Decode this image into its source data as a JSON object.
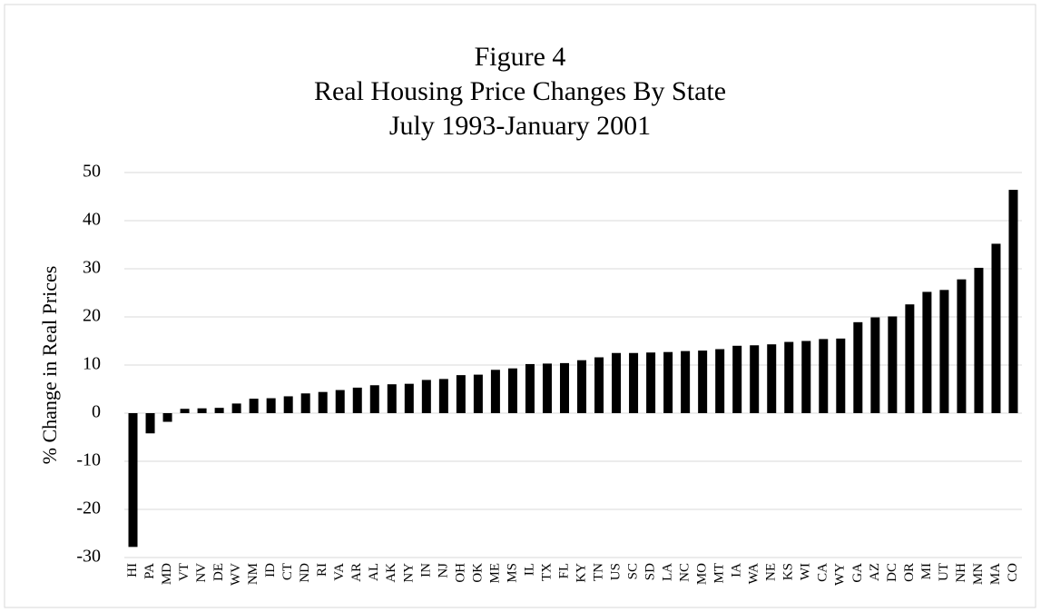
{
  "chart_data": {
    "type": "bar",
    "title": [
      "Figure 4",
      "Real Housing Price Changes By State",
      "July 1993-January 2001"
    ],
    "y_label": "% Change in Real Prices",
    "categories": [
      "HI",
      "PA",
      "MD",
      "VT",
      "NV",
      "DE",
      "WV",
      "NM",
      "ID",
      "CT",
      "ND",
      "RI",
      "VA",
      "AR",
      "AL",
      "AK",
      "NY",
      "IN",
      "NJ",
      "OH",
      "OK",
      "ME",
      "MS",
      "IL",
      "TX",
      "FL",
      "KY",
      "TN",
      "US",
      "SC",
      "SD",
      "LA",
      "NC",
      "MO",
      "MT",
      "IA",
      "WA",
      "NE",
      "KS",
      "WI",
      "CA",
      "WY",
      "GA",
      "AZ",
      "DC",
      "OR",
      "MI",
      "UT",
      "NH",
      "MN",
      "MA",
      "CO"
    ],
    "values": [
      -27.8,
      -4.2,
      -1.8,
      0.9,
      1.0,
      1.1,
      2.0,
      3.0,
      3.1,
      3.5,
      4.1,
      4.4,
      4.8,
      5.3,
      5.8,
      6.0,
      6.1,
      6.9,
      7.1,
      7.9,
      8.0,
      9.0,
      9.3,
      10.2,
      10.3,
      10.4,
      11.0,
      11.6,
      12.5,
      12.5,
      12.6,
      12.7,
      12.9,
      13.0,
      13.3,
      14.0,
      14.1,
      14.3,
      14.8,
      15.0,
      15.4,
      15.5,
      18.9,
      19.9,
      20.1,
      22.6,
      25.2,
      25.6,
      27.8,
      30.2,
      35.2,
      46.4
    ],
    "color": "#000000",
    "ylim": [
      -30,
      50
    ],
    "yticks": [
      -30,
      -20,
      -10,
      0,
      10,
      20,
      30,
      40,
      50
    ],
    "grid": true
  }
}
